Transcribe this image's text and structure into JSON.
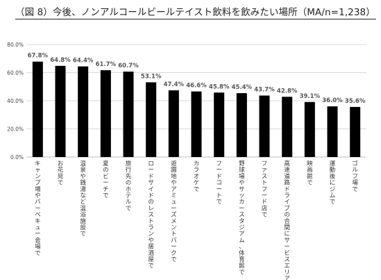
{
  "page": {
    "title": "（図 8）今後、ノンアルコールビールテイスト飲料を飲みたい場所（MA/n=1,238）"
  },
  "chart_data": {
    "type": "bar",
    "title": "（図 8）今後、ノンアルコールビールテイスト飲料を飲みたい場所（MA/n=1,238）",
    "xlabel": "",
    "ylabel": "",
    "ylim": [
      0,
      80
    ],
    "yticks": [
      "0.0%",
      "20.0%",
      "40.0%",
      "60.0%",
      "80.0%"
    ],
    "ytick_values": [
      0,
      20,
      40,
      60,
      80
    ],
    "grid": true,
    "legend": "none",
    "bar_color": "#000000",
    "categories": [
      "キャンプ場やバーベキュー会場で",
      "お花見で",
      "温泉や銭湯など温浴施設で",
      "夏のビーチで",
      "旅行先のホテルで",
      "ロードサイドのレストランや居酒屋で",
      "遊園地やアミューズメントパークで",
      "カラオケで",
      "フードコートで",
      "野球場やサッカースタジアム、体育館で",
      "ファストフード店で",
      "高速道路ドライブの合間にサービスエリアで",
      "映画館で",
      "運動後にジムで",
      "ゴルフ場で"
    ],
    "values": [
      67.8,
      64.8,
      64.4,
      61.7,
      60.7,
      53.1,
      47.4,
      46.6,
      45.8,
      45.4,
      43.7,
      42.8,
      39.1,
      36.0,
      35.6
    ],
    "data_labels": [
      "67.8%",
      "64.8%",
      "64.4%",
      "61.7%",
      "60.7%",
      "53.1%",
      "47.4%",
      "46.6%",
      "45.8%",
      "45.4%",
      "43.7%",
      "42.8%",
      "39.1%",
      "36.0%",
      "35.6%"
    ]
  }
}
